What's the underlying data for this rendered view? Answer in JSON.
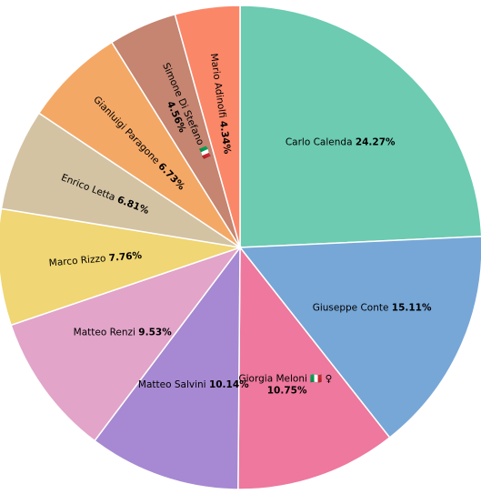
{
  "chart_data": {
    "type": "pie",
    "title": "",
    "start_angle_deg": 90,
    "direction": "clockwise",
    "slices": [
      {
        "label": "Carlo Calenda",
        "emoji": "",
        "value": 24.27,
        "pct_label": "24.27%",
        "color": "#6ccbb1"
      },
      {
        "label": "Giuseppe Conte",
        "emoji": "",
        "value": 15.11,
        "pct_label": "15.11%",
        "color": "#77a7d7"
      },
      {
        "label": "Giorgia Meloni",
        "emoji": "🇮🇹 ♀",
        "value": 10.75,
        "pct_label": "10.75%",
        "color": "#ee789e"
      },
      {
        "label": "Matteo Salvini",
        "emoji": "",
        "value": 10.14,
        "pct_label": "10.14%",
        "color": "#a689d2"
      },
      {
        "label": "Matteo Renzi",
        "emoji": "",
        "value": 9.53,
        "pct_label": "9.53%",
        "color": "#e2a4c9"
      },
      {
        "label": "Marco Rizzo",
        "emoji": "",
        "value": 7.76,
        "pct_label": "7.76%",
        "color": "#f0d674"
      },
      {
        "label": "Enrico Letta",
        "emoji": "",
        "value": 6.81,
        "pct_label": "6.81%",
        "color": "#d3c3a3"
      },
      {
        "label": "Gianluigi Paragone",
        "emoji": "",
        "value": 6.73,
        "pct_label": "6.73%",
        "color": "#f4a866"
      },
      {
        "label": "Simone Di Stefano",
        "emoji": "🇮🇹",
        "value": 4.56,
        "pct_label": "4.56%",
        "color": "#c58571"
      },
      {
        "label": "Mario Adinolfi",
        "emoji": "",
        "value": 4.34,
        "pct_label": "4.34%",
        "color": "#fb8769"
      }
    ]
  }
}
